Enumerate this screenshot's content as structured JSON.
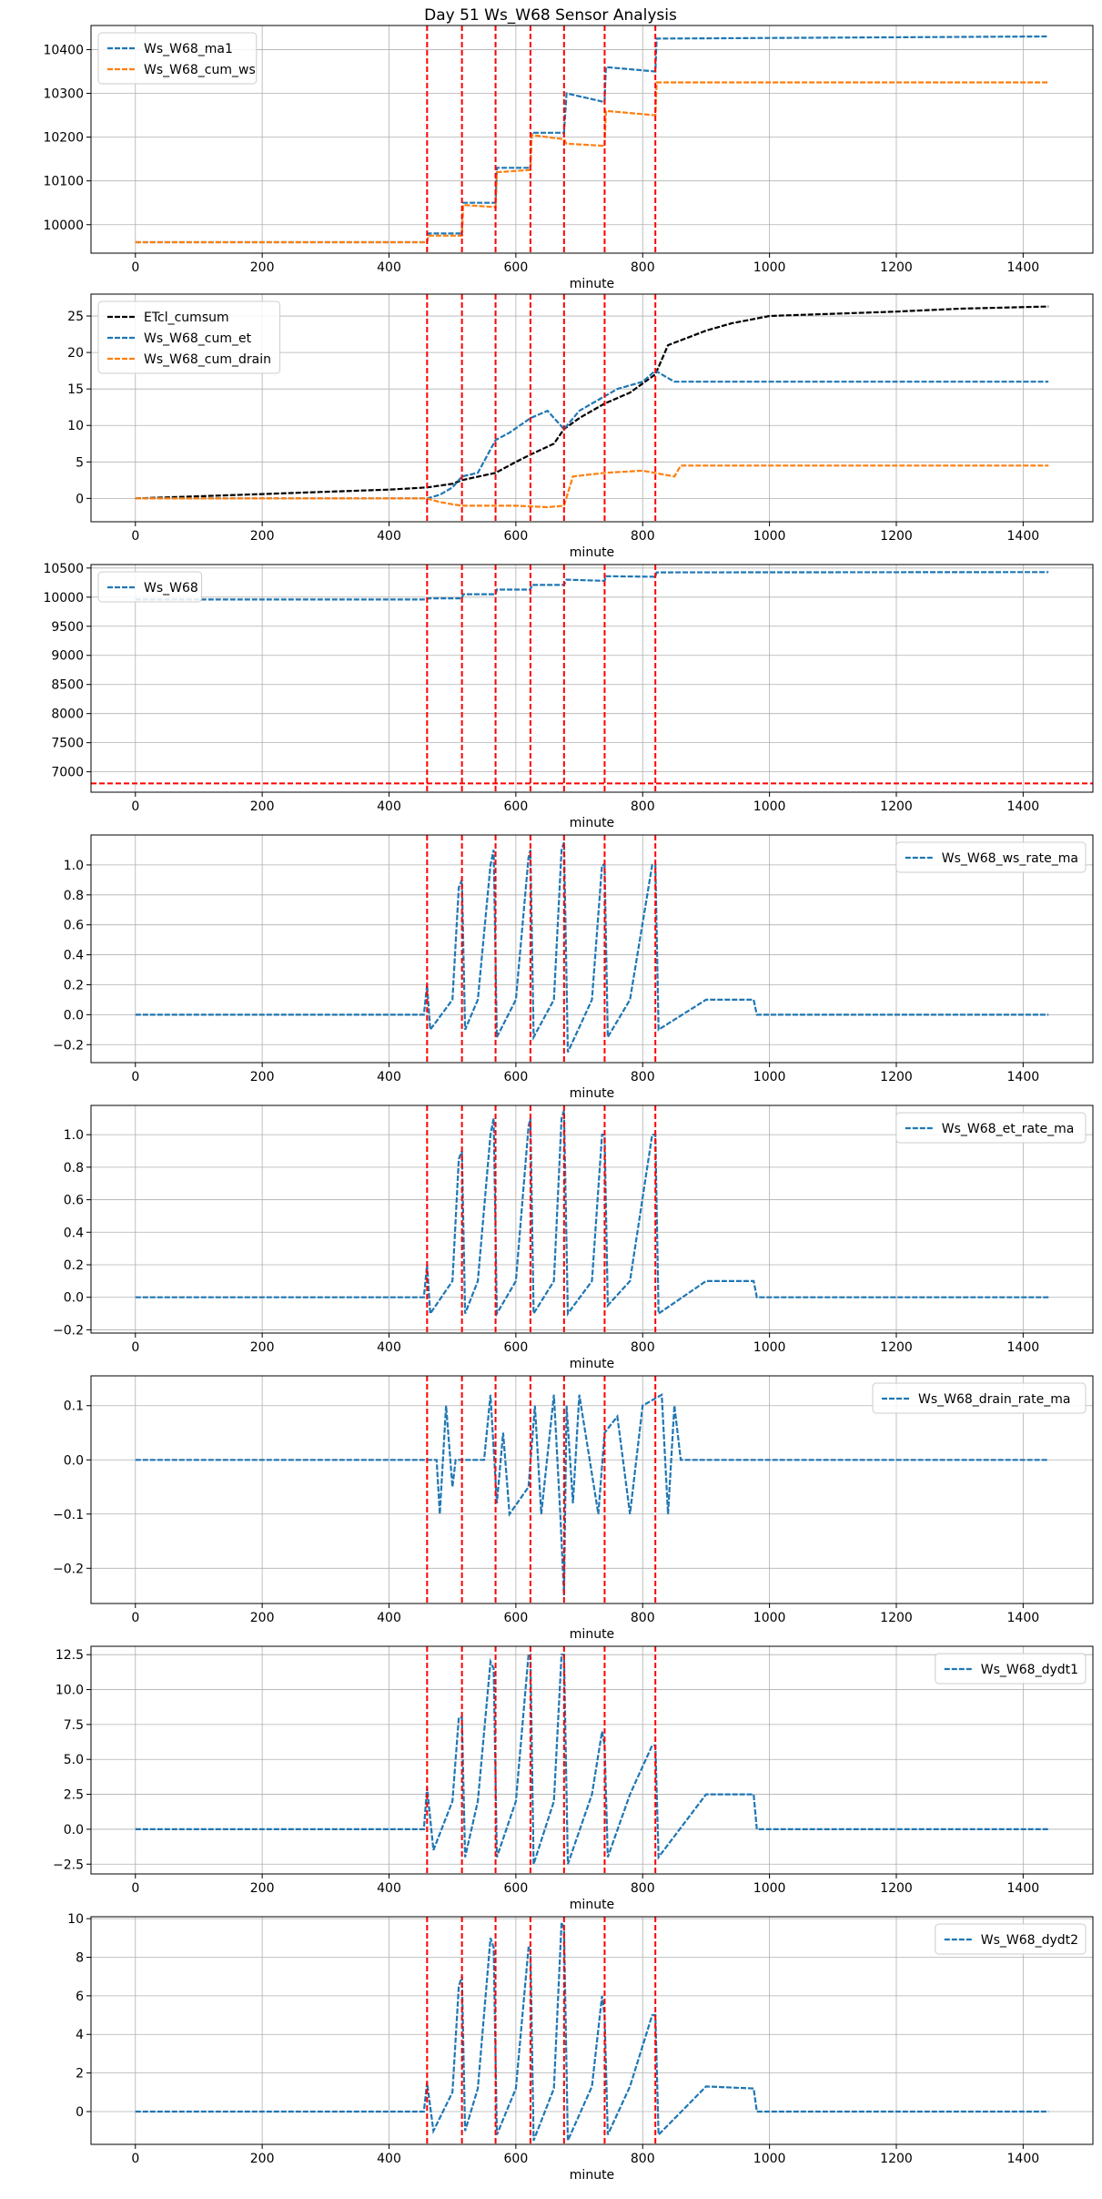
{
  "figure_title": "Day 51 Ws_W68 Sensor Analysis",
  "colors": {
    "blue": "#1f77b4",
    "orange": "#ff7f0e",
    "black": "#000000",
    "event_line": "#ff0000",
    "grid": "#b0b0b0"
  },
  "chart_data": [
    {
      "type": "line",
      "xlabel": "minute",
      "xlim": [
        -70,
        1510
      ],
      "ylim": [
        9935,
        10455
      ],
      "xticks": [
        0,
        200,
        400,
        600,
        800,
        1000,
        1200,
        1400
      ],
      "yticks": [
        10000,
        10100,
        10200,
        10300,
        10400
      ],
      "ytick_labels": [
        "10000",
        "10100",
        "10200",
        "10300",
        "10400"
      ],
      "legend_position": "upper left",
      "grid": true,
      "event_lines_x": [
        460,
        515,
        568,
        623,
        676,
        740,
        820
      ],
      "series": [
        {
          "name": "Ws_W68_ma1",
          "color": "#1f77b4",
          "style": "dashed",
          "x": [
            0,
            460,
            462,
            515,
            517,
            568,
            570,
            623,
            625,
            676,
            680,
            740,
            742,
            820,
            822,
            1440
          ],
          "y": [
            9960,
            9960,
            9980,
            9980,
            10050,
            10050,
            10130,
            10130,
            10210,
            10210,
            10300,
            10280,
            10360,
            10350,
            10425,
            10430
          ]
        },
        {
          "name": "Ws_W68_cum_ws",
          "color": "#ff7f0e",
          "style": "dashed",
          "x": [
            0,
            460,
            462,
            515,
            517,
            568,
            570,
            623,
            625,
            676,
            680,
            740,
            742,
            820,
            822,
            1440
          ],
          "y": [
            9960,
            9960,
            9975,
            9975,
            10045,
            10040,
            10120,
            10125,
            10205,
            10195,
            10185,
            10180,
            10260,
            10250,
            10325,
            10325
          ]
        }
      ]
    },
    {
      "type": "line",
      "xlabel": "minute",
      "xlim": [
        -70,
        1510
      ],
      "ylim": [
        -3.2,
        28
      ],
      "xticks": [
        0,
        200,
        400,
        600,
        800,
        1000,
        1200,
        1400
      ],
      "yticks": [
        0,
        5,
        10,
        15,
        20,
        25
      ],
      "ytick_labels": [
        "0",
        "5",
        "10",
        "15",
        "20",
        "25"
      ],
      "legend_position": "upper left",
      "grid": true,
      "event_lines_x": [
        460,
        515,
        568,
        623,
        676,
        740,
        820
      ],
      "series": [
        {
          "name": "ETcl_cumsum",
          "color": "#000000",
          "style": "dashed",
          "x": [
            0,
            100,
            200,
            300,
            400,
            460,
            500,
            515,
            568,
            600,
            623,
            660,
            676,
            700,
            740,
            780,
            820,
            840,
            900,
            940,
            1000,
            1100,
            1200,
            1300,
            1440
          ],
          "y": [
            0,
            0.3,
            0.6,
            0.9,
            1.2,
            1.5,
            2,
            2.5,
            3.5,
            5,
            6,
            7.5,
            9.5,
            11,
            13,
            14.5,
            17,
            21,
            23,
            24,
            25,
            25.3,
            25.6,
            26,
            26.3
          ]
        },
        {
          "name": "Ws_W68_cum_et",
          "color": "#1f77b4",
          "style": "dashed",
          "x": [
            0,
            460,
            480,
            500,
            515,
            540,
            568,
            590,
            623,
            650,
            676,
            700,
            740,
            760,
            800,
            820,
            850,
            900,
            980,
            1440
          ],
          "y": [
            0,
            0,
            0.5,
            1.5,
            3,
            3.5,
            8,
            9,
            11,
            12,
            9.5,
            12,
            14,
            15,
            16,
            17.5,
            16,
            16,
            16,
            16
          ]
        },
        {
          "name": "Ws_W68_cum_drain",
          "color": "#ff7f0e",
          "style": "dashed",
          "x": [
            0,
            460,
            480,
            500,
            515,
            600,
            650,
            676,
            690,
            740,
            800,
            850,
            860,
            1000,
            1440
          ],
          "y": [
            0,
            0,
            -0.5,
            -0.8,
            -1,
            -1,
            -1.2,
            -1,
            3,
            3.5,
            3.8,
            3,
            4.5,
            4.5,
            4.5
          ]
        }
      ]
    },
    {
      "type": "line",
      "xlabel": "minute",
      "xlim": [
        -70,
        1510
      ],
      "ylim": [
        6650,
        10560
      ],
      "xticks": [
        0,
        200,
        400,
        600,
        800,
        1000,
        1200,
        1400
      ],
      "yticks": [
        7000,
        7500,
        8000,
        8500,
        9000,
        9500,
        10000,
        10500
      ],
      "ytick_labels": [
        "7000",
        "7500",
        "8000",
        "8500",
        "9000",
        "9500",
        "10000",
        "10500"
      ],
      "legend_position": "upper left",
      "grid": true,
      "event_lines_x": [
        460,
        515,
        568,
        623,
        676,
        740,
        820
      ],
      "hline_y": 6800,
      "series": [
        {
          "name": "Ws_W68",
          "color": "#1f77b4",
          "style": "dashed",
          "x": [
            0,
            460,
            462,
            515,
            517,
            568,
            570,
            623,
            625,
            676,
            680,
            740,
            742,
            820,
            822,
            1440
          ],
          "y": [
            9960,
            9960,
            9980,
            9980,
            10050,
            10050,
            10130,
            10130,
            10210,
            10210,
            10300,
            10280,
            10360,
            10350,
            10425,
            10430
          ]
        }
      ]
    },
    {
      "type": "line",
      "xlabel": "minute",
      "xlim": [
        -70,
        1510
      ],
      "ylim": [
        -0.32,
        1.2
      ],
      "xticks": [
        0,
        200,
        400,
        600,
        800,
        1000,
        1200,
        1400
      ],
      "yticks": [
        -0.2,
        0.0,
        0.2,
        0.4,
        0.6,
        0.8,
        1.0
      ],
      "ytick_labels": [
        "−0.2",
        "0.0",
        "0.2",
        "0.4",
        "0.6",
        "0.8",
        "1.0"
      ],
      "legend_position": "upper right",
      "grid": true,
      "event_lines_x": [
        460,
        515,
        568,
        623,
        676,
        740,
        820
      ],
      "series": [
        {
          "name": "Ws_W68_ws_rate_ma",
          "color": "#1f77b4",
          "style": "dashed",
          "x": [
            0,
            455,
            460,
            465,
            500,
            510,
            515,
            520,
            540,
            560,
            565,
            570,
            600,
            620,
            623,
            628,
            660,
            672,
            676,
            682,
            720,
            736,
            740,
            745,
            780,
            815,
            820,
            825,
            900,
            975,
            980,
            1440
          ],
          "y": [
            0,
            0,
            0.2,
            -0.1,
            0.1,
            0.85,
            0.9,
            -0.1,
            0.1,
            1.0,
            1.1,
            -0.15,
            0.1,
            1.05,
            1.1,
            -0.15,
            0.1,
            1.1,
            1.15,
            -0.25,
            0.1,
            1.0,
            1.0,
            -0.15,
            0.1,
            1.0,
            1.0,
            -0.1,
            0.1,
            0.1,
            0,
            0
          ]
        }
      ]
    },
    {
      "type": "line",
      "xlabel": "minute",
      "xlim": [
        -70,
        1510
      ],
      "ylim": [
        -0.22,
        1.18
      ],
      "xticks": [
        0,
        200,
        400,
        600,
        800,
        1000,
        1200,
        1400
      ],
      "yticks": [
        -0.2,
        0.0,
        0.2,
        0.4,
        0.6,
        0.8,
        1.0
      ],
      "ytick_labels": [
        "−0.2",
        "0.0",
        "0.2",
        "0.4",
        "0.6",
        "0.8",
        "1.0"
      ],
      "legend_position": "upper right",
      "grid": true,
      "event_lines_x": [
        460,
        515,
        568,
        623,
        676,
        740,
        820
      ],
      "series": [
        {
          "name": "Ws_W68_et_rate_ma",
          "color": "#1f77b4",
          "style": "dashed",
          "x": [
            0,
            455,
            460,
            465,
            500,
            510,
            515,
            520,
            540,
            560,
            565,
            570,
            600,
            620,
            623,
            628,
            660,
            672,
            676,
            682,
            720,
            736,
            740,
            745,
            780,
            815,
            820,
            825,
            900,
            975,
            980,
            1440
          ],
          "y": [
            0,
            0,
            0.2,
            -0.1,
            0.1,
            0.85,
            0.9,
            -0.1,
            0.1,
            1.0,
            1.1,
            -0.1,
            0.1,
            1.05,
            1.1,
            -0.1,
            0.1,
            1.1,
            1.15,
            -0.1,
            0.1,
            1.0,
            1.0,
            -0.05,
            0.1,
            1.0,
            1.0,
            -0.1,
            0.1,
            0.1,
            0,
            0
          ]
        }
      ]
    },
    {
      "type": "line",
      "xlabel": "minute",
      "xlim": [
        -70,
        1510
      ],
      "ylim": [
        -0.265,
        0.155
      ],
      "xticks": [
        0,
        200,
        400,
        600,
        800,
        1000,
        1200,
        1400
      ],
      "yticks": [
        -0.2,
        -0.1,
        0.0,
        0.1
      ],
      "ytick_labels": [
        "−0.2",
        "−0.1",
        "0.0",
        "0.1"
      ],
      "legend_position": "upper right",
      "grid": true,
      "event_lines_x": [
        460,
        515,
        568,
        623,
        676,
        740,
        820
      ],
      "series": [
        {
          "name": "Ws_W68_drain_rate_ma",
          "color": "#1f77b4",
          "style": "dashed",
          "x": [
            0,
            475,
            480,
            490,
            500,
            505,
            510,
            550,
            560,
            570,
            580,
            590,
            620,
            630,
            640,
            660,
            670,
            676,
            680,
            690,
            700,
            730,
            740,
            760,
            780,
            800,
            830,
            840,
            850,
            860,
            1440
          ],
          "y": [
            0,
            0,
            -0.1,
            0.1,
            -0.05,
            0,
            0,
            0,
            0.12,
            -0.08,
            0.05,
            -0.1,
            -0.05,
            0.1,
            -0.1,
            0.12,
            -0.1,
            -0.25,
            0.1,
            -0.08,
            0.12,
            -0.1,
            0.05,
            0.08,
            -0.1,
            0.1,
            0.12,
            -0.1,
            0.1,
            0,
            0
          ]
        }
      ]
    },
    {
      "type": "line",
      "xlabel": "minute",
      "xlim": [
        -70,
        1510
      ],
      "ylim": [
        -3.2,
        13.1
      ],
      "xticks": [
        0,
        200,
        400,
        600,
        800,
        1000,
        1200,
        1400
      ],
      "yticks": [
        -2.5,
        0.0,
        2.5,
        5.0,
        7.5,
        10.0,
        12.5
      ],
      "ytick_labels": [
        "−2.5",
        "0.0",
        "2.5",
        "5.0",
        "7.5",
        "10.0",
        "12.5"
      ],
      "legend_position": "upper right",
      "grid": true,
      "event_lines_x": [
        460,
        515,
        568,
        623,
        676,
        740,
        820
      ],
      "series": [
        {
          "name": "Ws_W68_dydt1",
          "color": "#1f77b4",
          "style": "dashed",
          "x": [
            0,
            455,
            460,
            470,
            500,
            510,
            515,
            520,
            540,
            560,
            565,
            570,
            600,
            620,
            623,
            628,
            660,
            672,
            676,
            682,
            720,
            736,
            740,
            745,
            780,
            815,
            820,
            825,
            900,
            975,
            980,
            1440
          ],
          "y": [
            0,
            0,
            3,
            -1.5,
            2,
            8,
            8,
            -2,
            2,
            12,
            11.5,
            -2,
            2,
            12.5,
            12.5,
            -2.5,
            2,
            12.5,
            12.5,
            -2.5,
            2.5,
            7,
            6,
            -2,
            2.5,
            6,
            6,
            -2,
            2.5,
            2.5,
            0,
            0
          ]
        }
      ]
    },
    {
      "type": "line",
      "xlabel": "minute",
      "xlim": [
        -70,
        1510
      ],
      "ylim": [
        -1.7,
        10.1
      ],
      "xticks": [
        0,
        200,
        400,
        600,
        800,
        1000,
        1200,
        1400
      ],
      "yticks": [
        0,
        2,
        4,
        6,
        8,
        10
      ],
      "ytick_labels": [
        "0",
        "2",
        "4",
        "6",
        "8",
        "10"
      ],
      "legend_position": "upper right",
      "grid": true,
      "event_lines_x": [
        460,
        515,
        568,
        623,
        676,
        740,
        820
      ],
      "series": [
        {
          "name": "Ws_W68_dydt2",
          "color": "#1f77b4",
          "style": "dashed",
          "x": [
            0,
            455,
            460,
            470,
            500,
            510,
            515,
            520,
            540,
            560,
            565,
            570,
            600,
            620,
            623,
            628,
            660,
            672,
            676,
            682,
            720,
            736,
            740,
            745,
            780,
            815,
            820,
            825,
            900,
            975,
            980,
            1440
          ],
          "y": [
            0,
            0,
            1.5,
            -1,
            1,
            6.5,
            7,
            -1,
            1.2,
            9,
            8.5,
            -1.2,
            1.2,
            8.5,
            8.5,
            -1.5,
            1.2,
            9.8,
            9.5,
            -1.5,
            1.3,
            6,
            5,
            -1.2,
            1.3,
            5,
            5,
            -1.2,
            1.3,
            1.2,
            0,
            0
          ]
        }
      ]
    }
  ]
}
